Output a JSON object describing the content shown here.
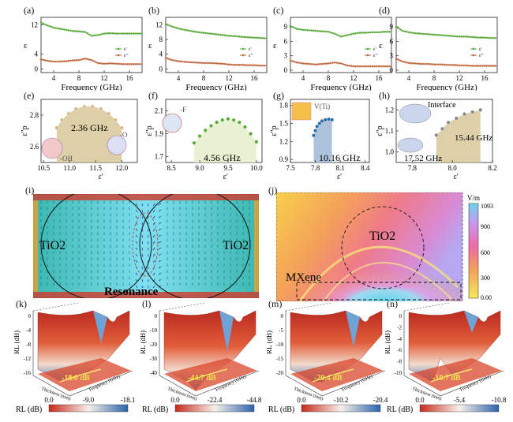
{
  "colors": {
    "real": "#5aa83a",
    "imag": "#c0663c",
    "fit": "#d7c89a",
    "blue_fit": "#9fb8d6",
    "surf_red": "#c62a1c",
    "surf_blue": "#4a7fc4",
    "cbar_low": "#f5e95a",
    "cbar_high": "#6fd2e8"
  },
  "top_row": [
    {
      "panel": "(a)",
      "ylabel": "ε",
      "xlabel": "Frequency (GHz)",
      "yticks": [
        "12",
        "4",
        "0"
      ],
      "xticks": [
        "4",
        "8",
        "12",
        "16"
      ],
      "legend": [
        "ε'",
        "ε\""
      ]
    },
    {
      "panel": "(b)",
      "ylabel": "ε",
      "xlabel": "Frequency (GHz)",
      "yticks": [
        "12",
        "8",
        "4",
        "0"
      ],
      "xticks": [
        "4",
        "8",
        "12",
        "16"
      ],
      "legend": [
        "ε'",
        "ε\""
      ]
    },
    {
      "panel": "(c)",
      "ylabel": "ε",
      "xlabel": "Frequency (GHz)",
      "yticks": [
        "9",
        "6",
        "3",
        "0"
      ],
      "xticks": [
        "4",
        "8",
        "12",
        "16"
      ],
      "legend": [
        "ε'",
        "ε\""
      ]
    },
    {
      "panel": "(d)",
      "ylabel": "ε",
      "xlabel": "Frequency (GHz)",
      "yticks": [
        "9",
        "6",
        "3",
        "0"
      ],
      "xticks": [
        "4",
        "8",
        "12",
        "16"
      ],
      "legend": [
        "ε'",
        "ε\""
      ]
    }
  ],
  "cole_row": [
    {
      "panel": "(e)",
      "ylabel": "ε\"p",
      "xlabel": "ε'",
      "yticks": [
        "2.8",
        "2.6"
      ],
      "xticks": [
        "10.5",
        "11.0",
        "11.5",
        "12.0"
      ],
      "annot": "2.36 GHz",
      "groups": [
        "-OH",
        "-O"
      ]
    },
    {
      "panel": "(f)",
      "ylabel": "ε\"p",
      "xlabel": "ε'",
      "yticks": [
        "2.1",
        "1.9",
        "1.7"
      ],
      "xticks": [
        "8.5",
        "9.0",
        "9.5",
        "10.0"
      ],
      "annot": "4.56 GHz",
      "groups": [
        "-F"
      ]
    },
    {
      "panel": "(g)",
      "ylabel": "ε\"p",
      "xlabel": "ε'",
      "yticks": [
        "1.8",
        "1.5",
        "1.2",
        "0.9"
      ],
      "xticks": [
        "7.5",
        "7.8",
        "8.1",
        "8.4"
      ],
      "annot": "10.16 GHz",
      "groups": [
        "V(Ti)"
      ]
    },
    {
      "panel": "(h)",
      "ylabel": "ε\"p",
      "xlabel": "ε'",
      "yticks": [
        "1.2",
        "1.1",
        "1.0"
      ],
      "xticks": [
        "7.8",
        "8.0",
        "8.2"
      ],
      "annot": [
        "15.44 GHz",
        "17.52 GHz"
      ],
      "groups": [
        "Interface"
      ]
    }
  ],
  "panel_i": {
    "panel": "(i)",
    "labels": [
      "TiO2",
      "TiO2"
    ],
    "caption": "Resonance"
  },
  "panel_j": {
    "panel": "(j)",
    "labels": [
      "TiO2",
      "MXene"
    ],
    "cbar_unit": "V/m",
    "cbar_ticks": [
      "1093",
      "900",
      "600",
      "300",
      "0.00"
    ]
  },
  "rl_row": [
    {
      "panel": "(k)",
      "zlabel": "RL (dB)",
      "zticks": [
        "0",
        "-4",
        "-8",
        "-12",
        "-16"
      ],
      "min_label": "-18.0 dB",
      "cbar_label": "RL (dB)",
      "cbar_ticks": [
        "0.0",
        "-9.0",
        "-18.1"
      ]
    },
    {
      "panel": "(l)",
      "zlabel": "RL (dB)",
      "zticks": [
        "0",
        "-10",
        "-20",
        "-30",
        "-40"
      ],
      "min_label": "-44.7 dB",
      "cbar_label": "RL (dB)",
      "cbar_ticks": [
        "0.0",
        "-22.4",
        "-44.8"
      ]
    },
    {
      "panel": "(m)",
      "zlabel": "RL (dB)",
      "zticks": [
        "0",
        "-5",
        "-10",
        "-15",
        "-20"
      ],
      "min_label": "-20.4 dB",
      "cbar_label": "RL (dB)",
      "cbar_ticks": [
        "0.0",
        "-10.2",
        "-20.4"
      ]
    },
    {
      "panel": "(n)",
      "zlabel": "RL (dB)",
      "zticks": [
        "0",
        "-2",
        "-4",
        "-6",
        "-8",
        "-10"
      ],
      "min_label": "-10.7 dB",
      "cbar_label": "RL (dB)",
      "cbar_ticks": [
        "0.0",
        "-5.4",
        "-10.8"
      ]
    }
  ],
  "rl_axes": {
    "thickness": "Thickness (mm)",
    "frequency": "Frequency (GHz)"
  },
  "chart_data": [
    {
      "type": "line",
      "panel": "(a)",
      "xlabel": "Frequency (GHz)",
      "ylabel": "ε",
      "xlim": [
        2,
        18
      ],
      "ylim": [
        -1,
        14
      ],
      "x": [
        2,
        3,
        4,
        5,
        6,
        7,
        8,
        9,
        10,
        11,
        12,
        13,
        14,
        15,
        16,
        17,
        18
      ],
      "series": [
        {
          "name": "ε'",
          "values": [
            12.6,
            11.8,
            11.2,
            10.9,
            10.6,
            10.3,
            10.2,
            10.0,
            9.0,
            9.2,
            9.6,
            9.7,
            9.6,
            9.6,
            9.6,
            9.6,
            9.6
          ]
        },
        {
          "name": "ε\"",
          "values": [
            2.6,
            2.2,
            2.0,
            2.0,
            2.1,
            2.3,
            2.4,
            2.8,
            2.4,
            1.6,
            1.4,
            1.5,
            1.4,
            1.3,
            1.3,
            1.3,
            1.3
          ]
        }
      ]
    },
    {
      "type": "line",
      "panel": "(b)",
      "xlabel": "Frequency (GHz)",
      "ylabel": "ε",
      "xlim": [
        2,
        18
      ],
      "ylim": [
        -1,
        14
      ],
      "x": [
        2,
        3,
        4,
        5,
        6,
        7,
        8,
        9,
        10,
        11,
        12,
        13,
        14,
        15,
        16,
        17,
        18
      ],
      "series": [
        {
          "name": "ε'",
          "values": [
            12.2,
            11.5,
            11.0,
            10.6,
            10.3,
            10.0,
            9.8,
            9.6,
            9.4,
            9.2,
            9.0,
            8.9,
            8.7,
            8.6,
            8.5,
            8.4,
            8.3
          ]
        },
        {
          "name": "ε\"",
          "values": [
            3.0,
            2.4,
            2.1,
            1.9,
            1.8,
            1.7,
            1.6,
            1.6,
            1.5,
            1.4,
            1.2,
            1.1,
            1.1,
            1.0,
            1.0,
            0.9,
            0.9
          ]
        }
      ]
    },
    {
      "type": "line",
      "panel": "(c)",
      "xlabel": "Frequency (GHz)",
      "ylabel": "ε",
      "xlim": [
        2,
        18
      ],
      "ylim": [
        -0.5,
        11
      ],
      "x": [
        2,
        3,
        4,
        5,
        6,
        7,
        8,
        9,
        10,
        11,
        12,
        13,
        14,
        15,
        16,
        17,
        18
      ],
      "series": [
        {
          "name": "ε'",
          "values": [
            9.2,
            8.6,
            8.4,
            8.3,
            8.2,
            8.1,
            8.0,
            7.6,
            7.0,
            7.3,
            7.6,
            7.8,
            7.8,
            7.9,
            7.9,
            8.0,
            8.0
          ]
        },
        {
          "name": "ε\"",
          "values": [
            2.0,
            1.6,
            1.4,
            1.3,
            1.2,
            1.3,
            1.4,
            1.6,
            1.4,
            1.0,
            0.8,
            0.8,
            0.8,
            0.8,
            0.8,
            0.8,
            0.8
          ]
        }
      ]
    },
    {
      "type": "line",
      "panel": "(d)",
      "xlabel": "Frequency (GHz)",
      "ylabel": "ε",
      "xlim": [
        2,
        18
      ],
      "ylim": [
        -0.5,
        11
      ],
      "x": [
        2,
        3,
        4,
        5,
        6,
        7,
        8,
        9,
        10,
        11,
        12,
        13,
        14,
        15,
        16,
        17,
        18
      ],
      "series": [
        {
          "name": "ε'",
          "values": [
            9.0,
            8.2,
            7.9,
            7.7,
            7.6,
            7.5,
            7.4,
            7.3,
            7.2,
            7.1,
            7.0,
            7.0,
            6.9,
            6.8,
            6.8,
            6.7,
            6.7
          ]
        },
        {
          "name": "ε\"",
          "values": [
            2.4,
            1.8,
            1.5,
            1.4,
            1.3,
            1.3,
            1.2,
            1.2,
            1.1,
            1.1,
            1.0,
            1.0,
            0.9,
            0.9,
            0.9,
            0.9,
            0.9
          ]
        }
      ]
    },
    {
      "type": "scatter",
      "panel": "(e)",
      "xlabel": "ε'",
      "ylabel": "ε\"p",
      "xlim": [
        10.45,
        12.3
      ],
      "ylim": [
        2.5,
        2.9
      ],
      "series": [
        {
          "x": [
            10.75,
            10.85,
            10.98,
            11.12,
            11.28,
            11.44,
            11.6,
            11.75,
            11.88,
            12.0
          ],
          "values": [
            2.72,
            2.77,
            2.81,
            2.84,
            2.855,
            2.855,
            2.84,
            2.81,
            2.77,
            2.72
          ]
        }
      ]
    },
    {
      "type": "scatter",
      "panel": "(f)",
      "xlabel": "ε'",
      "ylabel": "ε\"p",
      "xlim": [
        8.4,
        10.1
      ],
      "ylim": [
        1.65,
        2.2
      ],
      "series": [
        {
          "x": [
            8.9,
            9.0,
            9.1,
            9.2,
            9.3,
            9.4,
            9.5,
            9.6,
            9.7,
            9.8,
            9.9,
            10.0
          ],
          "values": [
            1.82,
            1.88,
            1.93,
            1.97,
            2.0,
            2.02,
            2.03,
            2.02,
            2.0,
            1.96,
            1.9,
            1.83
          ]
        }
      ]
    },
    {
      "type": "scatter",
      "panel": "(g)",
      "xlabel": "ε'",
      "ylabel": "ε\"p",
      "xlim": [
        7.5,
        8.45
      ],
      "ylim": [
        0.85,
        1.9
      ],
      "series": [
        {
          "x": [
            7.78,
            7.8,
            7.82,
            7.85,
            7.88,
            7.92,
            7.96,
            8.0
          ],
          "values": [
            1.3,
            1.38,
            1.45,
            1.5,
            1.54,
            1.56,
            1.57,
            1.56
          ]
        }
      ]
    },
    {
      "type": "scatter",
      "panel": "(h)",
      "xlabel": "ε'",
      "ylabel": "ε\"p",
      "xlim": [
        7.72,
        8.2
      ],
      "ylim": [
        0.95,
        1.25
      ],
      "series": [
        {
          "x": [
            7.92,
            7.95,
            7.98,
            8.02,
            8.06,
            8.1,
            8.14
          ],
          "values": [
            1.08,
            1.11,
            1.14,
            1.16,
            1.18,
            1.19,
            1.2
          ]
        }
      ]
    },
    {
      "type": "heatmap",
      "panel": "(i)",
      "title": "",
      "annotation": "Resonance"
    },
    {
      "type": "heatmap",
      "panel": "(j)",
      "colorbar": {
        "unit": "V/m",
        "min": 0,
        "max": 1093,
        "ticks": [
          0,
          300,
          600,
          900,
          1093
        ]
      }
    },
    {
      "type": "area",
      "panel": "(k)",
      "zlabel": "RL (dB)",
      "min": -18.1,
      "min_label": "-18.0 dB",
      "colorbar": [
        0.0,
        -9.0,
        -18.1
      ]
    },
    {
      "type": "area",
      "panel": "(l)",
      "zlabel": "RL (dB)",
      "min": -44.8,
      "min_label": "-44.7 dB",
      "colorbar": [
        0.0,
        -22.4,
        -44.8
      ]
    },
    {
      "type": "area",
      "panel": "(m)",
      "zlabel": "RL (dB)",
      "min": -20.4,
      "min_label": "-20.4 dB",
      "colorbar": [
        0.0,
        -10.2,
        -20.4
      ]
    },
    {
      "type": "area",
      "panel": "(n)",
      "zlabel": "RL (dB)",
      "min": -10.8,
      "min_label": "-10.7 dB",
      "colorbar": [
        0.0,
        -5.4,
        -10.8
      ]
    }
  ]
}
